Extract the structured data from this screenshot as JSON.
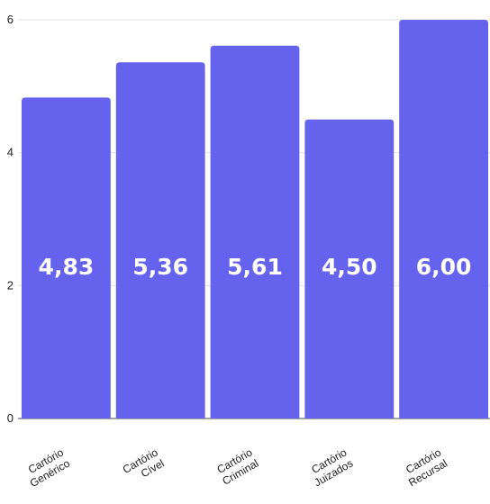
{
  "chart_data": {
    "type": "bar",
    "categories": [
      [
        "Cartório",
        "Genérico"
      ],
      [
        "Cartório",
        "Cível"
      ],
      [
        "Cartório",
        "Criminal"
      ],
      [
        "Cartório",
        "Juizados"
      ],
      [
        "Cartório",
        "Recursal"
      ]
    ],
    "values": [
      4.83,
      5.36,
      5.61,
      4.5,
      6.0
    ],
    "value_labels": [
      "4,83",
      "5,36",
      "5,61",
      "4,50",
      "6,00"
    ],
    "ylim": [
      0,
      6
    ],
    "yticks": [
      0,
      2,
      4,
      6
    ],
    "ytick_labels": [
      "0",
      "2",
      "4",
      "6"
    ],
    "grid": true,
    "title": "",
    "xlabel": "",
    "ylabel": "",
    "colors": {
      "bar": "#6563ED",
      "grid": "#e3e3e3",
      "axis": "#444444"
    }
  }
}
